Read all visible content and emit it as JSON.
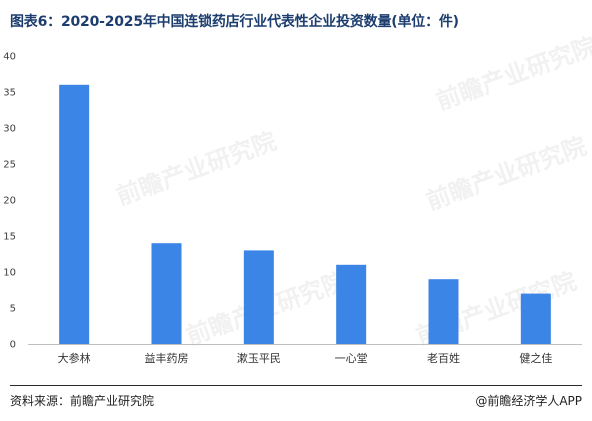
{
  "title": "图表6：2020-2025年中国连锁药店行业代表性企业投资数量(单位：件)",
  "chart_data": {
    "type": "bar",
    "categories": [
      "大参林",
      "益丰药房",
      "漱玉平民",
      "一心堂",
      "老百姓",
      "健之佳"
    ],
    "values": [
      36,
      14,
      13,
      11,
      9,
      7
    ],
    "ylim": [
      0,
      40
    ],
    "yticks": [
      0,
      5,
      10,
      15,
      20,
      25,
      30,
      35,
      40
    ],
    "bar_color": "#3a85e6",
    "grid": false,
    "legend": "none"
  },
  "watermark": "前瞻产业研究院",
  "footer": {
    "source": "资料来源：前瞻产业研究院",
    "brand": "@前瞻经济学人APP"
  }
}
